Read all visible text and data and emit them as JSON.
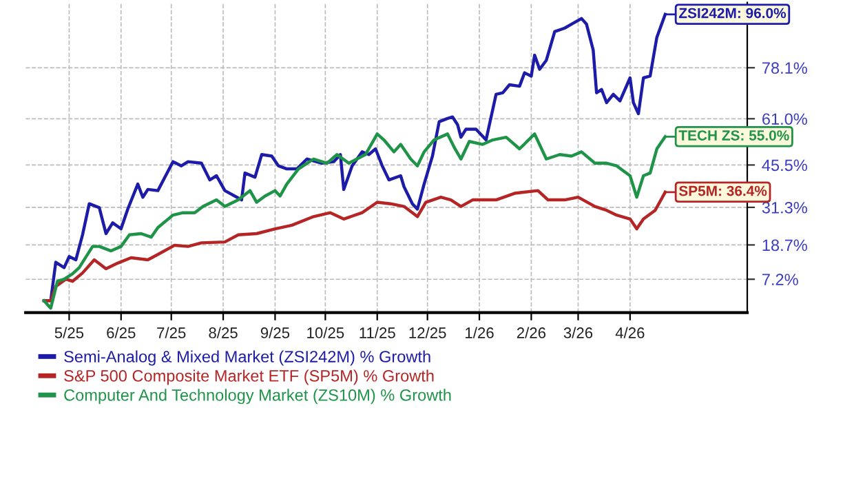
{
  "chart_data": {
    "type": "line",
    "xlim": [
      "2025-04-05",
      "2026-06-10"
    ],
    "xticks": [
      {
        "value": "2025-05-01",
        "label": "5/25"
      },
      {
        "value": "2025-06-01",
        "label": "6/25"
      },
      {
        "value": "2025-07-01",
        "label": "7/25"
      },
      {
        "value": "2025-08-01",
        "label": "8/25"
      },
      {
        "value": "2025-09-01",
        "label": "9/25"
      },
      {
        "value": "2025-10-01",
        "label": "10/25"
      },
      {
        "value": "2025-11-01",
        "label": "11/25"
      },
      {
        "value": "2025-12-01",
        "label": "12/25"
      },
      {
        "value": "2026-01-01",
        "label": "1/26"
      },
      {
        "value": "2026-02-01",
        "label": "2/26"
      },
      {
        "value": "2026-03-01",
        "label": "3/26"
      },
      {
        "value": "2026-04-01",
        "label": "4/26"
      }
    ],
    "ylim": [
      -4,
      100
    ],
    "yticks": [
      {
        "value": 7.2,
        "label": "7.2%"
      },
      {
        "value": 18.7,
        "label": "18.7%"
      },
      {
        "value": 31.3,
        "label": "31.3%"
      },
      {
        "value": 45.5,
        "label": "45.5%"
      },
      {
        "value": 61.0,
        "label": "61.0%"
      },
      {
        "value": 78.1,
        "label": "78.1%"
      }
    ],
    "grid": true,
    "legend": "bottom",
    "marker": "none",
    "line_style": "solid",
    "series": [
      {
        "name": "Semi-Analog & Mixed Market (ZSI242M) % Growth",
        "color": "#1c1ca8",
        "x": [
          "2025-04-16",
          "2025-04-20",
          "2025-04-23",
          "2025-04-28",
          "2025-05-01",
          "2025-05-05",
          "2025-05-09",
          "2025-05-13",
          "2025-05-19",
          "2025-05-23",
          "2025-05-27",
          "2025-06-01",
          "2025-06-05",
          "2025-06-11",
          "2025-06-14",
          "2025-06-17",
          "2025-06-23",
          "2025-07-02",
          "2025-07-07",
          "2025-07-11",
          "2025-07-19",
          "2025-07-24",
          "2025-07-28",
          "2025-08-02",
          "2025-08-12",
          "2025-08-14",
          "2025-08-20",
          "2025-08-24",
          "2025-08-30",
          "2025-09-03",
          "2025-09-08",
          "2025-09-14",
          "2025-09-20",
          "2025-09-29",
          "2025-10-06",
          "2025-10-10",
          "2025-10-12",
          "2025-10-17",
          "2025-10-23",
          "2025-10-27",
          "2025-10-31",
          "2025-11-04",
          "2025-11-08",
          "2025-11-15",
          "2025-11-17",
          "2025-11-22",
          "2025-11-25",
          "2025-11-29",
          "2025-12-04",
          "2025-12-08",
          "2025-12-13",
          "2025-12-16",
          "2025-12-19",
          "2025-12-21",
          "2025-12-24",
          "2025-12-30",
          "2026-01-05",
          "2026-01-11",
          "2026-01-15",
          "2026-01-19",
          "2026-01-25",
          "2026-01-28",
          "2026-02-01",
          "2026-02-03",
          "2026-02-06",
          "2026-02-10",
          "2026-02-15",
          "2026-02-21",
          "2026-02-25",
          "2026-03-03",
          "2026-03-06",
          "2026-03-10",
          "2026-03-12",
          "2026-03-15",
          "2026-03-18",
          "2026-03-22",
          "2026-03-26",
          "2026-04-01",
          "2026-04-03",
          "2026-04-06",
          "2026-04-09",
          "2026-04-13",
          "2026-04-17",
          "2026-04-22"
        ],
        "values": [
          0,
          0,
          12.9,
          11.1,
          14.8,
          13.7,
          22.1,
          32.5,
          31.2,
          22.5,
          26.1,
          24.1,
          30.7,
          39.1,
          34.7,
          37.3,
          36.9,
          46.6,
          45.2,
          46.6,
          46.1,
          40.5,
          41.9,
          36.9,
          33.8,
          42.8,
          41.4,
          49.0,
          48.5,
          45.2,
          44.2,
          44.2,
          47.5,
          46.1,
          46.6,
          49.0,
          37.3,
          45.2,
          49.9,
          49.0,
          50.9,
          45.2,
          40.5,
          41.9,
          38.2,
          32.5,
          30.7,
          39.1,
          48.5,
          60.0,
          61.1,
          61.6,
          59.0,
          54.8,
          57.5,
          57.5,
          53.9,
          69.2,
          69.7,
          72.4,
          71.9,
          76.4,
          75.3,
          82.3,
          77.6,
          80.6,
          90.2,
          91.4,
          92.7,
          94.6,
          92.7,
          84.0,
          69.7,
          70.8,
          66.4,
          69.2,
          67.0,
          74.7,
          66.4,
          62.7,
          74.7,
          75.3,
          88.3,
          96.0
        ]
      },
      {
        "name": "S&P 500 Composite Market ETF (SP5M) % Growth",
        "color": "#b52525",
        "x": [
          "2025-04-16",
          "2025-04-20",
          "2025-04-23",
          "2025-04-29",
          "2025-05-03",
          "2025-05-09",
          "2025-05-16",
          "2025-05-23",
          "2025-05-30",
          "2025-06-07",
          "2025-06-17",
          "2025-06-23",
          "2025-07-03",
          "2025-07-11",
          "2025-07-19",
          "2025-08-02",
          "2025-08-10",
          "2025-08-21",
          "2025-09-01",
          "2025-09-11",
          "2025-09-24",
          "2025-10-04",
          "2025-10-12",
          "2025-10-23",
          "2025-11-01",
          "2025-11-09",
          "2025-11-17",
          "2025-11-25",
          "2025-11-30",
          "2025-12-09",
          "2025-12-15",
          "2025-12-21",
          "2025-12-28",
          "2026-01-11",
          "2026-01-22",
          "2026-02-05",
          "2026-02-11",
          "2026-02-21",
          "2026-03-01",
          "2026-03-11",
          "2026-03-18",
          "2026-03-24",
          "2026-04-01",
          "2026-04-05",
          "2026-04-09",
          "2026-04-16",
          "2026-04-22"
        ],
        "values": [
          0,
          0,
          4.8,
          7.2,
          6.5,
          9.3,
          13.7,
          10.7,
          12.6,
          14.4,
          13.7,
          15.5,
          18.6,
          18.2,
          19.4,
          19.7,
          22.1,
          22.5,
          24.1,
          25.3,
          28.2,
          29.5,
          27.4,
          29.5,
          33.0,
          32.5,
          31.6,
          28.2,
          33.0,
          34.7,
          33.8,
          31.6,
          33.8,
          33.8,
          36.0,
          36.9,
          33.8,
          33.8,
          34.7,
          31.6,
          30.3,
          28.7,
          27.4,
          24.1,
          27.4,
          30.3,
          36.4
        ]
      },
      {
        "name": "Computer And Technology Market (ZS10M) % Growth",
        "color": "#1f9448",
        "x": [
          "2025-04-16",
          "2025-04-20",
          "2025-04-24",
          "2025-04-28",
          "2025-05-03",
          "2025-05-07",
          "2025-05-15",
          "2025-05-19",
          "2025-05-26",
          "2025-06-01",
          "2025-06-06",
          "2025-06-13",
          "2025-06-19",
          "2025-06-23",
          "2025-07-02",
          "2025-07-08",
          "2025-07-15",
          "2025-07-20",
          "2025-07-28",
          "2025-08-02",
          "2025-08-10",
          "2025-08-17",
          "2025-08-21",
          "2025-08-26",
          "2025-09-01",
          "2025-09-04",
          "2025-09-08",
          "2025-09-15",
          "2025-09-24",
          "2025-10-02",
          "2025-10-08",
          "2025-10-15",
          "2025-10-25",
          "2025-11-01",
          "2025-11-05",
          "2025-11-11",
          "2025-11-15",
          "2025-11-21",
          "2025-11-25",
          "2025-11-29",
          "2025-12-05",
          "2025-12-13",
          "2025-12-17",
          "2025-12-21",
          "2025-12-26",
          "2026-01-03",
          "2026-01-09",
          "2026-01-17",
          "2026-01-25",
          "2026-02-03",
          "2026-02-10",
          "2026-02-18",
          "2026-02-25",
          "2026-03-03",
          "2026-03-11",
          "2026-03-18",
          "2026-03-24",
          "2026-04-01",
          "2026-04-05",
          "2026-04-09",
          "2026-04-13",
          "2026-04-17",
          "2026-04-22"
        ],
        "values": [
          0,
          -2.5,
          6.5,
          7.2,
          9.0,
          11.1,
          18.2,
          18.2,
          16.7,
          18.2,
          22.1,
          22.5,
          21.3,
          24.5,
          28.7,
          29.5,
          29.5,
          31.6,
          33.8,
          31.6,
          33.8,
          36.9,
          33.0,
          35.1,
          36.9,
          35.1,
          39.1,
          44.2,
          47.5,
          46.1,
          49.0,
          46.1,
          49.0,
          55.9,
          53.9,
          49.9,
          52.4,
          47.5,
          45.2,
          49.9,
          53.9,
          55.9,
          51.4,
          47.5,
          53.4,
          52.4,
          53.9,
          54.8,
          50.9,
          55.9,
          47.5,
          49.0,
          48.5,
          49.9,
          46.1,
          46.1,
          45.2,
          41.9,
          34.7,
          41.9,
          42.8,
          50.9,
          55.0
        ]
      }
    ],
    "annotations": [
      {
        "text": "ZSI242M: 96.0%",
        "x": "2026-04-22",
        "y": 96.0
      },
      {
        "text": "TECH ZS: 55.0%",
        "x": "2026-04-22",
        "y": 55.0
      },
      {
        "text": "SP5M: 36.4%",
        "x": "2026-04-22",
        "y": 36.4
      }
    ]
  }
}
